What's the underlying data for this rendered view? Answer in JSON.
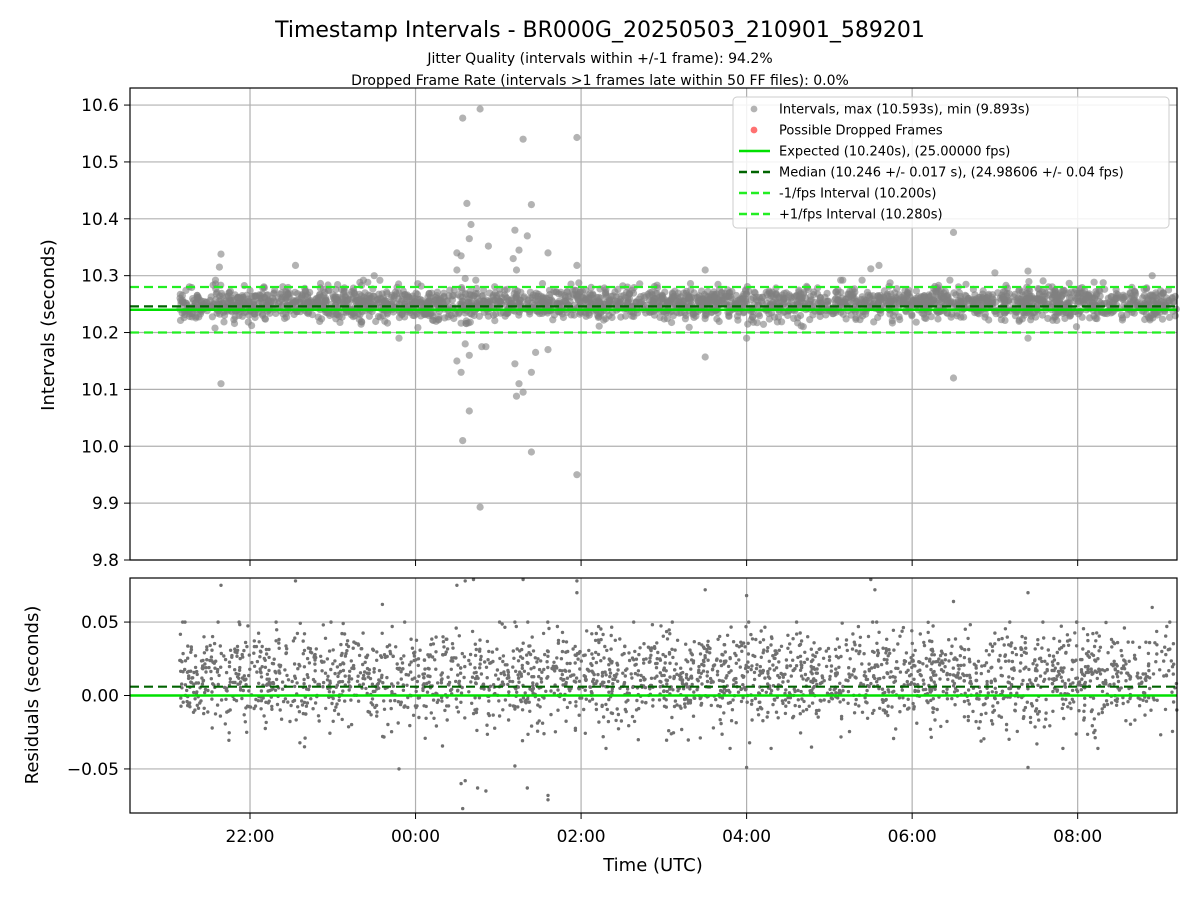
{
  "chart_data": [
    {
      "type": "scatter",
      "title": "Timestamp Intervals - BR000G_20250503_210901_589201",
      "subtitle_lines": [
        "Jitter Quality (intervals within +/-1 frame): 94.2%",
        "Dropped Frame Rate (intervals >1 frames late within 50 FF files): 0.0%"
      ],
      "ylabel": "Intervals (seconds)",
      "ylim": [
        9.8,
        10.63
      ],
      "y_ticks": [
        "10.6",
        "10.5",
        "10.4",
        "10.3",
        "10.2",
        "10.1",
        "10.0",
        "9.9",
        "9.8"
      ],
      "xlim_hours": [
        20.55,
        33.2
      ],
      "x_ticks": [
        "22:00",
        "00:00",
        "02:00",
        "04:00",
        "06:00",
        "08:00"
      ],
      "grid": true,
      "legend_position": "top-right",
      "legend": [
        "Intervals, max (10.593s), min (9.893s)",
        "Possible Dropped Frames",
        "Expected (10.240s), (25.00000 fps)",
        "Median (10.246 +/- 0.017 s), (24.98606 +/- 0.04 fps)",
        "-1/fps Interval (10.200s)",
        "+1/fps Interval (10.280s)"
      ],
      "reference_lines": {
        "expected": 10.24,
        "median": 10.246,
        "minus_one_fps": 10.2,
        "plus_one_fps": 10.28
      },
      "colors": {
        "points": "#808080",
        "dropped": "#ff4d4d",
        "expected": "#00e000",
        "median": "#006400",
        "interval_bounds": "#22ee22"
      },
      "series": [
        {
          "name": "Intervals",
          "summary": {
            "max": 10.593,
            "min": 9.893,
            "median": 10.246,
            "std": 0.017,
            "start_time": "21:09",
            "end_time": "09:12"
          },
          "outliers": [
            {
              "x": 21.65,
              "y": 10.338
            },
            {
              "x": 21.63,
              "y": 10.315
            },
            {
              "x": 21.65,
              "y": 10.11
            },
            {
              "x": 22.55,
              "y": 10.318
            },
            {
              "x": 23.5,
              "y": 10.3
            },
            {
              "x": 23.8,
              "y": 10.19
            },
            {
              "x": 24.5,
              "y": 10.31
            },
            {
              "x": 24.57,
              "y": 10.577
            },
            {
              "x": 24.62,
              "y": 10.427
            },
            {
              "x": 24.67,
              "y": 10.39
            },
            {
              "x": 24.78,
              "y": 10.593
            },
            {
              "x": 24.5,
              "y": 10.34
            },
            {
              "x": 24.55,
              "y": 10.335
            },
            {
              "x": 24.6,
              "y": 10.295
            },
            {
              "x": 24.65,
              "y": 10.365
            },
            {
              "x": 24.5,
              "y": 10.15
            },
            {
              "x": 24.55,
              "y": 10.13
            },
            {
              "x": 24.6,
              "y": 10.18
            },
            {
              "x": 24.65,
              "y": 10.16
            },
            {
              "x": 24.8,
              "y": 10.175
            },
            {
              "x": 24.85,
              "y": 10.175
            },
            {
              "x": 24.57,
              "y": 10.01
            },
            {
              "x": 24.65,
              "y": 10.062
            },
            {
              "x": 24.78,
              "y": 9.893
            },
            {
              "x": 24.88,
              "y": 10.352
            },
            {
              "x": 25.2,
              "y": 10.38
            },
            {
              "x": 25.25,
              "y": 10.345
            },
            {
              "x": 25.3,
              "y": 10.54
            },
            {
              "x": 25.35,
              "y": 10.37
            },
            {
              "x": 25.4,
              "y": 10.425
            },
            {
              "x": 25.18,
              "y": 10.33
            },
            {
              "x": 25.22,
              "y": 10.31
            },
            {
              "x": 25.2,
              "y": 10.145
            },
            {
              "x": 25.25,
              "y": 10.11
            },
            {
              "x": 25.3,
              "y": 10.095
            },
            {
              "x": 25.4,
              "y": 10.13
            },
            {
              "x": 25.22,
              "y": 10.088
            },
            {
              "x": 25.45,
              "y": 10.165
            },
            {
              "x": 25.6,
              "y": 10.17
            },
            {
              "x": 25.6,
              "y": 10.34
            },
            {
              "x": 25.4,
              "y": 9.99
            },
            {
              "x": 25.95,
              "y": 10.543
            },
            {
              "x": 25.95,
              "y": 10.318
            },
            {
              "x": 25.95,
              "y": 9.95
            },
            {
              "x": 27.5,
              "y": 10.157
            },
            {
              "x": 27.5,
              "y": 10.31
            },
            {
              "x": 28.0,
              "y": 10.19
            },
            {
              "x": 29.5,
              "y": 10.312
            },
            {
              "x": 29.6,
              "y": 10.318
            },
            {
              "x": 30.5,
              "y": 10.376
            },
            {
              "x": 30.5,
              "y": 10.12
            },
            {
              "x": 31.4,
              "y": 10.19
            },
            {
              "x": 31.4,
              "y": 10.308
            },
            {
              "x": 32.9,
              "y": 10.3
            },
            {
              "x": 31.0,
              "y": 10.305
            }
          ]
        }
      ]
    },
    {
      "type": "scatter",
      "xlabel": "Time (UTC)",
      "ylabel": "Residuals (seconds)",
      "ylim": [
        -0.08,
        0.08
      ],
      "y_ticks": [
        "0.05",
        "0.00",
        "−0.05"
      ],
      "x_ticks": [
        "22:00",
        "00:00",
        "02:00",
        "04:00",
        "06:00",
        "08:00"
      ],
      "xlim_hours": [
        20.55,
        33.2
      ],
      "grid": true,
      "reference_lines": {
        "zero": 0.0,
        "median_offset": 0.006
      },
      "series": [
        {
          "name": "Residuals",
          "summary": {
            "center": 0.006,
            "std": 0.017
          },
          "outliers": [
            {
              "x": 21.65,
              "y": 0.075
            },
            {
              "x": 22.55,
              "y": 0.078
            },
            {
              "x": 23.6,
              "y": 0.062
            },
            {
              "x": 23.8,
              "y": -0.05
            },
            {
              "x": 24.5,
              "y": 0.075
            },
            {
              "x": 24.6,
              "y": 0.078
            },
            {
              "x": 24.7,
              "y": 0.079
            },
            {
              "x": 24.55,
              "y": -0.06
            },
            {
              "x": 24.6,
              "y": -0.058
            },
            {
              "x": 24.75,
              "y": -0.063
            },
            {
              "x": 24.85,
              "y": -0.065
            },
            {
              "x": 24.57,
              "y": -0.077
            },
            {
              "x": 25.3,
              "y": 0.079
            },
            {
              "x": 25.2,
              "y": -0.048
            },
            {
              "x": 25.35,
              "y": -0.063
            },
            {
              "x": 25.6,
              "y": -0.068
            },
            {
              "x": 25.6,
              "y": -0.071
            },
            {
              "x": 25.95,
              "y": 0.078
            },
            {
              "x": 25.95,
              "y": 0.07
            },
            {
              "x": 27.5,
              "y": 0.072
            },
            {
              "x": 28.0,
              "y": -0.049
            },
            {
              "x": 28.0,
              "y": 0.068
            },
            {
              "x": 29.5,
              "y": 0.079
            },
            {
              "x": 29.55,
              "y": 0.072
            },
            {
              "x": 30.5,
              "y": 0.064
            },
            {
              "x": 31.4,
              "y": 0.07
            },
            {
              "x": 31.4,
              "y": -0.049
            },
            {
              "x": 32.9,
              "y": 0.06
            }
          ]
        }
      ]
    }
  ]
}
